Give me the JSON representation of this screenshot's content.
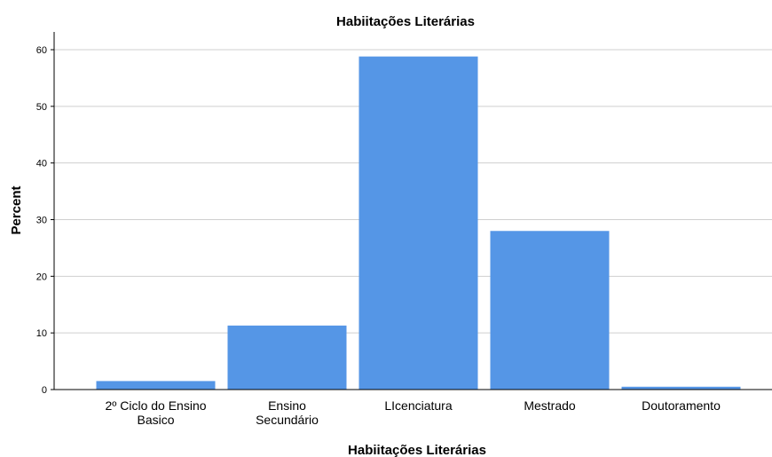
{
  "chart_data": {
    "type": "bar",
    "title": "Habiitações Literárias",
    "xlabel": "Habiitações Literárias",
    "ylabel": "Percent",
    "categories": [
      [
        "2º Ciclo do Ensino",
        "Basico"
      ],
      [
        "Ensino",
        "Secundário"
      ],
      [
        "LIcenciatura"
      ],
      [
        "Mestrado"
      ],
      [
        "Doutoramento"
      ]
    ],
    "values": [
      1.5,
      11.3,
      58.8,
      28.0,
      0.5
    ],
    "yticks": [
      0,
      10,
      20,
      30,
      40,
      50,
      60
    ],
    "ylim": [
      0,
      63
    ],
    "grid": true,
    "bar_color": "#5596e6"
  }
}
